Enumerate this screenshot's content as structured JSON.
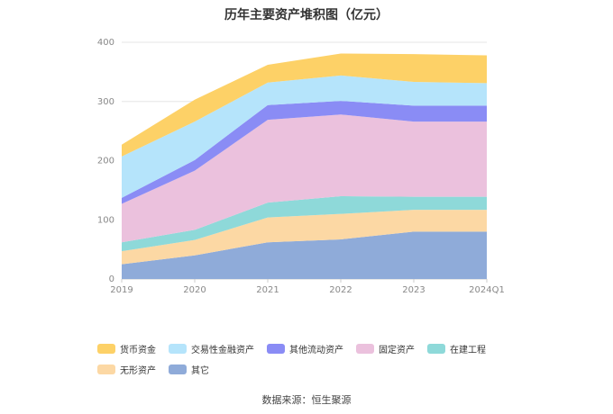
{
  "chart_data": {
    "type": "area",
    "title": "历年主要资产堆积图（亿元）",
    "categories": [
      "2019",
      "2020",
      "2021",
      "2022",
      "2023",
      "2024Q1"
    ],
    "ylim": [
      0,
      400
    ],
    "yticks": [
      0,
      100,
      200,
      300,
      400
    ],
    "stacked": true,
    "grid": true,
    "legend_position": "bottom-left",
    "series": [
      {
        "name": "其它",
        "color": "#8fabd9",
        "values": [
          25,
          40,
          62,
          67,
          80,
          80
        ]
      },
      {
        "name": "无形资产",
        "color": "#fcd8a4",
        "values": [
          22,
          26,
          42,
          43,
          37,
          37
        ]
      },
      {
        "name": "在建工程",
        "color": "#8ed9d9",
        "values": [
          15,
          17,
          25,
          30,
          22,
          22
        ]
      },
      {
        "name": "固定资产",
        "color": "#ebc1dd",
        "values": [
          65,
          100,
          140,
          138,
          127,
          127
        ]
      },
      {
        "name": "其他流动资产",
        "color": "#8a8cf5",
        "values": [
          10,
          18,
          25,
          23,
          27,
          27
        ]
      },
      {
        "name": "交易性金融资产",
        "color": "#b5e4fb",
        "values": [
          70,
          65,
          38,
          43,
          40,
          38
        ]
      },
      {
        "name": "货币资金",
        "color": "#fdd167",
        "values": [
          20,
          37,
          30,
          37,
          47,
          47
        ]
      }
    ]
  },
  "source_text": "数据来源：恒生聚源"
}
